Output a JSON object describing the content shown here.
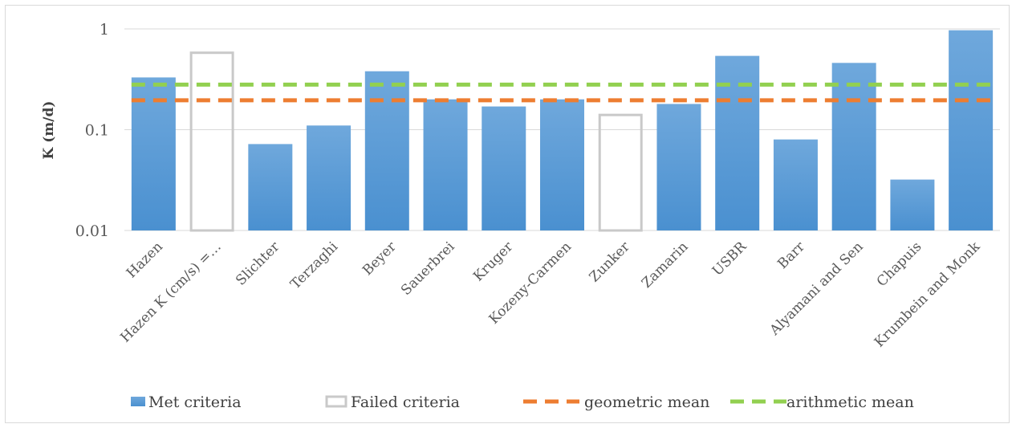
{
  "chart_data": {
    "type": "bar",
    "ylabel": "K (m/d)",
    "yscale": "log",
    "ylim": [
      0.01,
      1
    ],
    "yticks": [
      {
        "value": 1,
        "label": "1"
      },
      {
        "value": 0.1,
        "label": "0.1"
      },
      {
        "value": 0.01,
        "label": "0.01"
      }
    ],
    "grid": true,
    "legend_position": "bottom",
    "colors": {
      "met": "#4a90d0",
      "met_light": "#6fa8dc",
      "failed_outline": "#c9c9c9",
      "geometric_mean": "#ed7d31",
      "arithmetic_mean": "#92d050",
      "gridline": "#d9d9d9"
    },
    "categories": [
      "Hazen",
      "Hazen K (cm/s) =…",
      "Slichter",
      "Terzaghi",
      "Beyer",
      "Sauerbrei",
      "Kruger",
      "Kozeny-Carmen",
      "Zunker",
      "Zamarin",
      "USBR",
      "Barr",
      "Alyamani and Sen",
      "Chapuis",
      "Krumbein and Monk"
    ],
    "series": [
      {
        "name": "Met criteria",
        "style": "solid-bar",
        "values": [
          0.33,
          null,
          0.072,
          0.11,
          0.38,
          0.2,
          0.17,
          0.2,
          null,
          0.18,
          0.54,
          0.08,
          0.46,
          0.032,
          0.97
        ]
      },
      {
        "name": "Failed criteria",
        "style": "outline-bar",
        "values": [
          null,
          0.58,
          null,
          null,
          null,
          null,
          null,
          null,
          0.14,
          null,
          null,
          null,
          null,
          null,
          null
        ]
      },
      {
        "name": "geometric mean",
        "style": "dashed-line",
        "value": 0.196
      },
      {
        "name": "arithmetic mean",
        "style": "dashed-line",
        "value": 0.28
      }
    ]
  }
}
